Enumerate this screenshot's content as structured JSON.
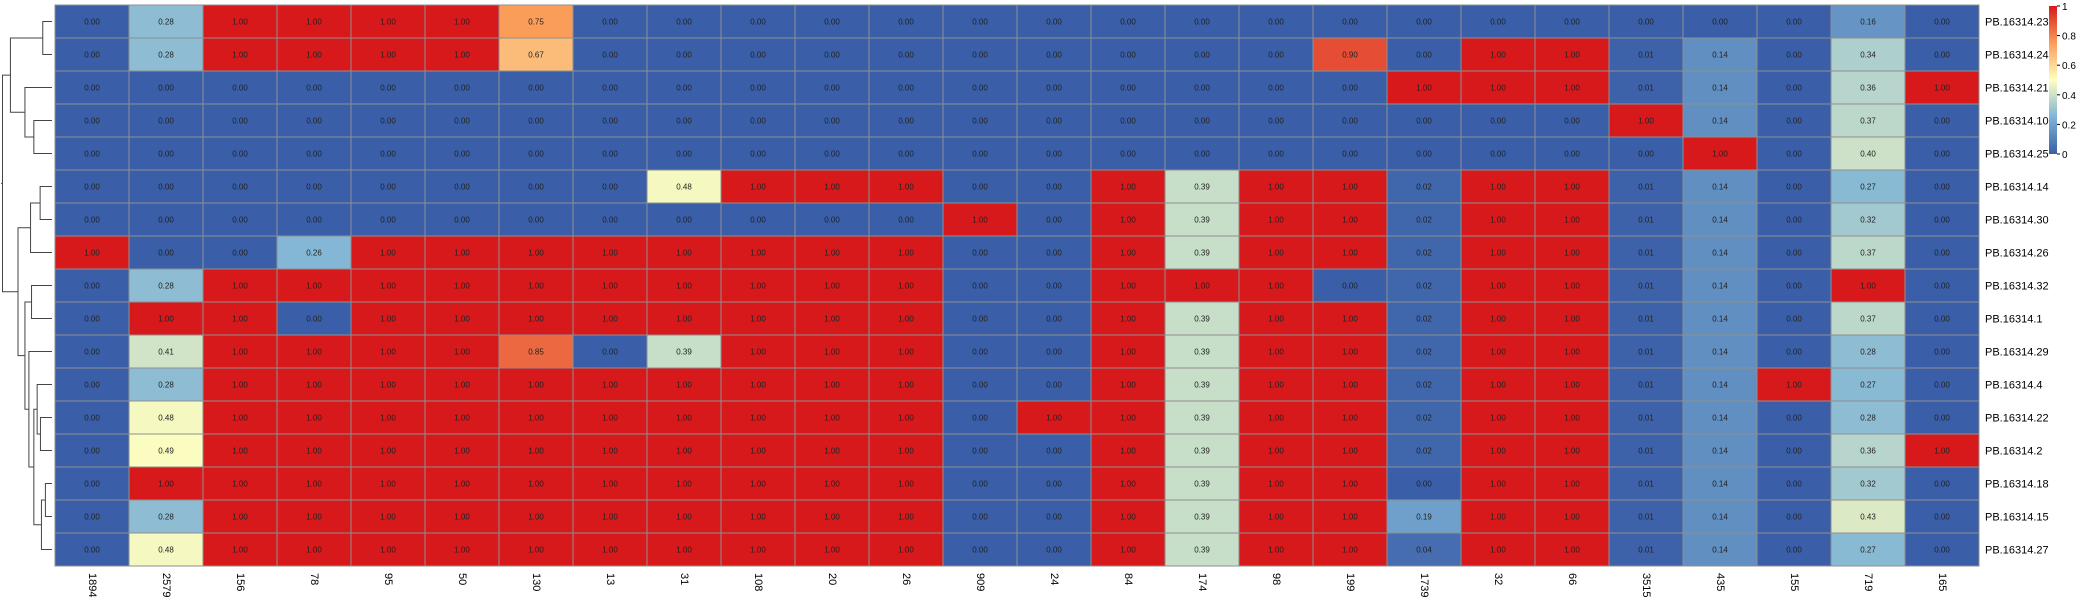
{
  "chart_data": {
    "type": "heatmap",
    "title": "",
    "xlabel": "",
    "ylabel": "",
    "columns": [
      "1894",
      "2579",
      "156",
      "78",
      "95",
      "50",
      "130",
      "13",
      "31",
      "108",
      "20",
      "26",
      "909",
      "24",
      "84",
      "174",
      "98",
      "199",
      "1739",
      "32",
      "66",
      "3515",
      "435",
      "155",
      "719",
      "165"
    ],
    "rows": [
      "PB.16314.23",
      "PB.16314.24",
      "PB.16314.21",
      "PB.16314.10",
      "PB.16314.25",
      "PB.16314.14",
      "PB.16314.30",
      "PB.16314.26",
      "PB.16314.32",
      "PB.16314.1",
      "PB.16314.29",
      "PB.16314.4",
      "PB.16314.22",
      "PB.16314.2",
      "PB.16314.18",
      "PB.16314.15",
      "PB.16314.27"
    ],
    "values": [
      [
        0.0,
        0.28,
        1.0,
        1.0,
        1.0,
        1.0,
        0.75,
        0.0,
        0.0,
        0.0,
        0.0,
        0.0,
        0.0,
        0.0,
        0.0,
        0.0,
        0.0,
        0.0,
        0.0,
        0.0,
        0.0,
        0.0,
        0.0,
        0.0,
        0.16,
        0.0
      ],
      [
        0.0,
        0.28,
        1.0,
        1.0,
        1.0,
        1.0,
        0.67,
        0.0,
        0.0,
        0.0,
        0.0,
        0.0,
        0.0,
        0.0,
        0.0,
        0.0,
        0.0,
        0.9,
        0.0,
        1.0,
        1.0,
        0.01,
        0.14,
        0.0,
        0.34,
        0.0
      ],
      [
        0.0,
        0.0,
        0.0,
        0.0,
        0.0,
        0.0,
        0.0,
        0.0,
        0.0,
        0.0,
        0.0,
        0.0,
        0.0,
        0.0,
        0.0,
        0.0,
        0.0,
        0.0,
        1.0,
        1.0,
        1.0,
        0.01,
        0.14,
        0.0,
        0.36,
        1.0
      ],
      [
        0.0,
        0.0,
        0.0,
        0.0,
        0.0,
        0.0,
        0.0,
        0.0,
        0.0,
        0.0,
        0.0,
        0.0,
        0.0,
        0.0,
        0.0,
        0.0,
        0.0,
        0.0,
        0.0,
        0.0,
        0.0,
        1.0,
        0.14,
        0.0,
        0.37,
        0.0
      ],
      [
        0.0,
        0.0,
        0.0,
        0.0,
        0.0,
        0.0,
        0.0,
        0.0,
        0.0,
        0.0,
        0.0,
        0.0,
        0.0,
        0.0,
        0.0,
        0.0,
        0.0,
        0.0,
        0.0,
        0.0,
        0.0,
        0.0,
        1.0,
        0.0,
        0.4,
        0.0
      ],
      [
        0.0,
        0.0,
        0.0,
        0.0,
        0.0,
        0.0,
        0.0,
        0.0,
        0.48,
        1.0,
        1.0,
        1.0,
        0.0,
        0.0,
        1.0,
        0.39,
        1.0,
        1.0,
        0.02,
        1.0,
        1.0,
        0.01,
        0.14,
        0.0,
        0.27,
        0.0
      ],
      [
        0.0,
        0.0,
        0.0,
        0.0,
        0.0,
        0.0,
        0.0,
        0.0,
        0.0,
        0.0,
        0.0,
        0.0,
        1.0,
        0.0,
        1.0,
        0.39,
        1.0,
        1.0,
        0.02,
        1.0,
        1.0,
        0.01,
        0.14,
        0.0,
        0.32,
        0.0
      ],
      [
        1.0,
        0.0,
        0.0,
        0.26,
        1.0,
        1.0,
        1.0,
        1.0,
        1.0,
        1.0,
        1.0,
        1.0,
        0.0,
        0.0,
        1.0,
        0.39,
        1.0,
        1.0,
        0.02,
        1.0,
        1.0,
        0.01,
        0.14,
        0.0,
        0.37,
        0.0
      ],
      [
        0.0,
        0.28,
        1.0,
        1.0,
        1.0,
        1.0,
        1.0,
        1.0,
        1.0,
        1.0,
        1.0,
        1.0,
        0.0,
        0.0,
        1.0,
        1.0,
        1.0,
        0.0,
        0.02,
        1.0,
        1.0,
        0.01,
        0.14,
        0.0,
        1.0,
        0.0
      ],
      [
        0.0,
        1.0,
        1.0,
        0.0,
        1.0,
        1.0,
        1.0,
        1.0,
        1.0,
        1.0,
        1.0,
        1.0,
        0.0,
        0.0,
        1.0,
        0.39,
        1.0,
        1.0,
        0.02,
        1.0,
        1.0,
        0.01,
        0.14,
        0.0,
        0.37,
        0.0
      ],
      [
        0.0,
        0.41,
        1.0,
        1.0,
        1.0,
        1.0,
        0.85,
        0.0,
        0.39,
        1.0,
        1.0,
        1.0,
        0.0,
        0.0,
        1.0,
        0.39,
        1.0,
        1.0,
        0.02,
        1.0,
        1.0,
        0.01,
        0.14,
        0.0,
        0.28,
        0.0
      ],
      [
        0.0,
        0.28,
        1.0,
        1.0,
        1.0,
        1.0,
        1.0,
        1.0,
        1.0,
        1.0,
        1.0,
        1.0,
        0.0,
        0.0,
        1.0,
        0.39,
        1.0,
        1.0,
        0.02,
        1.0,
        1.0,
        0.01,
        0.14,
        1.0,
        0.27,
        0.0
      ],
      [
        0.0,
        0.48,
        1.0,
        1.0,
        1.0,
        1.0,
        1.0,
        1.0,
        1.0,
        1.0,
        1.0,
        1.0,
        0.0,
        1.0,
        1.0,
        0.39,
        1.0,
        1.0,
        0.02,
        1.0,
        1.0,
        0.01,
        0.14,
        0.0,
        0.28,
        0.0
      ],
      [
        0.0,
        0.49,
        1.0,
        1.0,
        1.0,
        1.0,
        1.0,
        1.0,
        1.0,
        1.0,
        1.0,
        1.0,
        0.0,
        0.0,
        1.0,
        0.39,
        1.0,
        1.0,
        0.02,
        1.0,
        1.0,
        0.01,
        0.14,
        0.0,
        0.36,
        1.0
      ],
      [
        0.0,
        1.0,
        1.0,
        1.0,
        1.0,
        1.0,
        1.0,
        1.0,
        1.0,
        1.0,
        1.0,
        1.0,
        0.0,
        0.0,
        1.0,
        0.39,
        1.0,
        1.0,
        0.0,
        1.0,
        1.0,
        0.01,
        0.14,
        0.0,
        0.32,
        0.0
      ],
      [
        0.0,
        0.28,
        1.0,
        1.0,
        1.0,
        1.0,
        1.0,
        1.0,
        1.0,
        1.0,
        1.0,
        1.0,
        0.0,
        0.0,
        1.0,
        0.39,
        1.0,
        1.0,
        0.19,
        1.0,
        1.0,
        0.01,
        0.14,
        0.0,
        0.43,
        0.0
      ],
      [
        0.0,
        0.48,
        1.0,
        1.0,
        1.0,
        1.0,
        1.0,
        1.0,
        1.0,
        1.0,
        1.0,
        1.0,
        0.0,
        0.0,
        1.0,
        0.39,
        1.0,
        1.0,
        0.04,
        1.0,
        1.0,
        0.01,
        0.14,
        0.0,
        0.27,
        0.0
      ]
    ],
    "value_format": "2 decimals",
    "color_scale": {
      "range": [
        0,
        1
      ],
      "ticks": [
        "0",
        "0.2",
        "0.4",
        "0.6",
        "0.8",
        "1"
      ],
      "stops": [
        "#3a5fa8",
        "#7fb4d6",
        "#ffffbf",
        "#f99d59",
        "#d7191c"
      ]
    },
    "row_dendrogram": true,
    "grid": true,
    "legend": "right"
  }
}
